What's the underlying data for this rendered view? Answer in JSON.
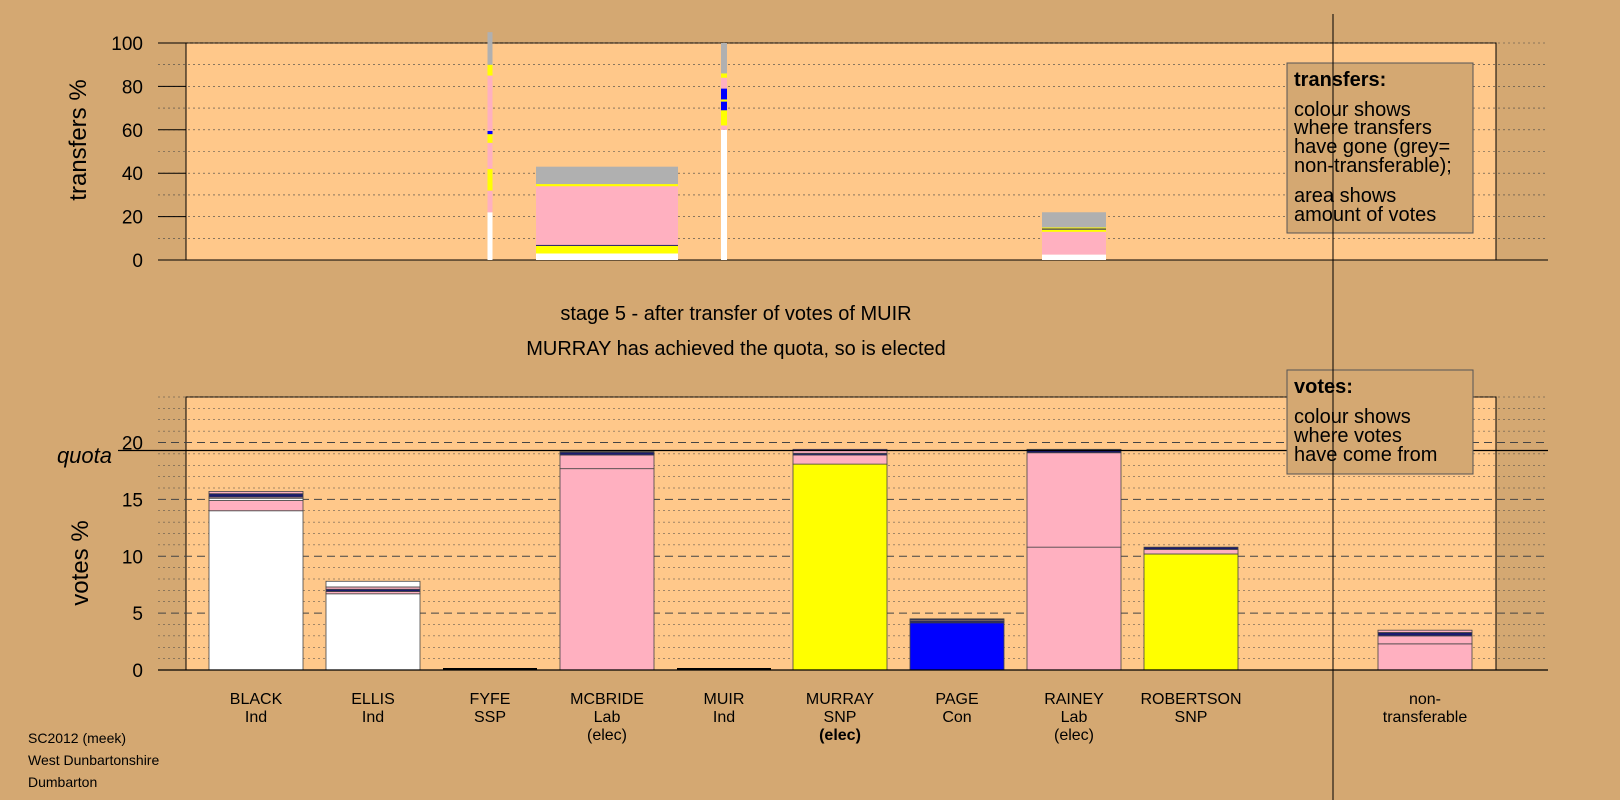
{
  "chart_data": [
    {
      "type": "bar",
      "panel": "transfers",
      "ylabel": "transfers %",
      "ylim": [
        0,
        100
      ],
      "yticks": [
        "0",
        "20",
        "40",
        "60",
        "80",
        "100"
      ],
      "note": "colour stacks show where transfers have gone; column width shows amount of votes",
      "columns": [
        {
          "candidate": "FYFE",
          "segments": [
            {
              "color": "#ffffff",
              "value": 22
            },
            {
              "color": "#ffb0c0",
              "value": 10
            },
            {
              "color": "#ffff00",
              "value": 10
            },
            {
              "color": "#ffb0c0",
              "value": 12
            },
            {
              "color": "#ffff00",
              "value": 4
            },
            {
              "color": "#0000ff",
              "value": 1.5
            },
            {
              "color": "#ffb0c0",
              "value": 25.5
            },
            {
              "color": "#ffff00",
              "value": 5
            },
            {
              "color": "#b0b0b0",
              "value": 15
            }
          ]
        },
        {
          "candidate": "MCBRIDE",
          "segments": [
            {
              "color": "#ffffff",
              "value": 3
            },
            {
              "color": "#ffff00",
              "value": 3.5
            },
            {
              "color": "#1a1a6e",
              "value": 0.5
            },
            {
              "color": "#ffb0c0",
              "value": 27
            },
            {
              "color": "#ffff00",
              "value": 1
            },
            {
              "color": "#b0b0b0",
              "value": 8
            }
          ]
        },
        {
          "candidate": "MUIR",
          "segments": [
            {
              "color": "#ffffff",
              "value": 60
            },
            {
              "color": "#ffb0c0",
              "value": 2
            },
            {
              "color": "#ffff00",
              "value": 7
            },
            {
              "color": "#0000ff",
              "value": 4
            },
            {
              "color": "#ffff00",
              "value": 1
            },
            {
              "color": "#0000ff",
              "value": 5
            },
            {
              "color": "#ffb0c0",
              "value": 5
            },
            {
              "color": "#ffff00",
              "value": 2
            },
            {
              "color": "#b0b0b0",
              "value": 14
            }
          ]
        },
        {
          "candidate": "RAINEY",
          "segments": [
            {
              "color": "#ffffff",
              "value": 2.5
            },
            {
              "color": "#ffb0c0",
              "value": 10.5
            },
            {
              "color": "#ffff00",
              "value": 1
            },
            {
              "color": "#1a1a6e",
              "value": 0.5
            },
            {
              "color": "#ffff00",
              "value": 0.5
            },
            {
              "color": "#b0b0b0",
              "value": 7
            }
          ]
        }
      ]
    },
    {
      "type": "bar",
      "panel": "votes",
      "ylabel": "votes %",
      "ylim": [
        0,
        24
      ],
      "yticks": [
        "0",
        "5",
        "10",
        "15",
        "20"
      ],
      "quota": 19.3,
      "note": "colour stacks show where votes have come from",
      "columns": [
        {
          "candidate": "BLACK",
          "segments": [
            {
              "color": "#ffffff",
              "value": 14.0
            },
            {
              "color": "#ffb0c0",
              "value": 0.9
            },
            {
              "color": "#ffffff",
              "value": 0.2
            },
            {
              "color": "#ffb0c0",
              "value": 0.1
            },
            {
              "color": "#1a1a6e",
              "value": 0.3
            },
            {
              "color": "#ffb0c0",
              "value": 0.2
            }
          ]
        },
        {
          "candidate": "ELLIS",
          "segments": [
            {
              "color": "#ffffff",
              "value": 6.7
            },
            {
              "color": "#ffb0c0",
              "value": 0.2
            },
            {
              "color": "#1a1a6e",
              "value": 0.2
            },
            {
              "color": "#ffb0c0",
              "value": 0.2
            },
            {
              "color": "#ffffff",
              "value": 0.5
            }
          ]
        },
        {
          "candidate": "FYFE",
          "segments": []
        },
        {
          "candidate": "MCBRIDE",
          "segments": [
            {
              "color": "#ffb0c0",
              "value": 17.7
            },
            {
              "color": "#ffb0c0",
              "value": 1.2
            },
            {
              "color": "#1a1a6e",
              "value": 0.25
            },
            {
              "color": "#7030a0",
              "value": 0.05
            }
          ]
        },
        {
          "candidate": "MUIR",
          "segments": []
        },
        {
          "candidate": "MURRAY",
          "segments": [
            {
              "color": "#ffff00",
              "value": 18.1
            },
            {
              "color": "#ffb0c0",
              "value": 0.8
            },
            {
              "color": "#1a1a6e",
              "value": 0.15
            },
            {
              "color": "#ffb0c0",
              "value": 0.25
            },
            {
              "color": "#7030a0",
              "value": 0.1
            }
          ]
        },
        {
          "candidate": "PAGE",
          "segments": [
            {
              "color": "#0000ff",
              "value": 4.15
            },
            {
              "color": "#1a1a6e",
              "value": 0.15
            },
            {
              "color": "#ffb0c0",
              "value": 0.1
            },
            {
              "color": "#1a1a6e",
              "value": 0.1
            }
          ]
        },
        {
          "candidate": "RAINEY",
          "segments": [
            {
              "color": "#ffb0c0",
              "value": 10.8
            },
            {
              "color": "#ffb0c0",
              "value": 8.3
            },
            {
              "color": "#1a1a6e",
              "value": 0.25
            },
            {
              "color": "#7030a0",
              "value": 0.05
            }
          ]
        },
        {
          "candidate": "ROBERTSON",
          "segments": [
            {
              "color": "#ffff00",
              "value": 10.2
            },
            {
              "color": "#ffb0c0",
              "value": 0.4
            },
            {
              "color": "#1a1a6e",
              "value": 0.2
            }
          ]
        },
        {
          "candidate": "non-transferable",
          "segments": [
            {
              "color": "#ffb0c0",
              "value": 2.3
            },
            {
              "color": "#ffb0c0",
              "value": 0.7
            },
            {
              "color": "#1a1a6e",
              "value": 0.3
            },
            {
              "color": "#ffb0c0",
              "value": 0.2
            }
          ]
        }
      ]
    }
  ],
  "stage_lines": [
    "stage 5 - after transfer of votes of MUIR",
    "MURRAY has achieved the quota, so is elected"
  ],
  "quota_label": "quota",
  "candidates": [
    {
      "name": "BLACK",
      "party": "Ind",
      "status": "",
      "status_bold": false
    },
    {
      "name": "ELLIS",
      "party": "Ind",
      "status": "",
      "status_bold": false
    },
    {
      "name": "FYFE",
      "party": "SSP",
      "status": "",
      "status_bold": false
    },
    {
      "name": "MCBRIDE",
      "party": "Lab",
      "status": "(elec)",
      "status_bold": false
    },
    {
      "name": "MUIR",
      "party": "Ind",
      "status": "",
      "status_bold": false
    },
    {
      "name": "MURRAY",
      "party": "SNP",
      "status": "(elec)",
      "status_bold": true
    },
    {
      "name": "PAGE",
      "party": "Con",
      "status": "",
      "status_bold": false
    },
    {
      "name": "RAINEY",
      "party": "Lab",
      "status": "(elec)",
      "status_bold": false
    },
    {
      "name": "ROBERTSON",
      "party": "SNP",
      "status": "",
      "status_bold": false
    },
    {
      "name": "non-",
      "party": "transferable",
      "status": "",
      "status_bold": false
    }
  ],
  "legend_transfers": {
    "title": "transfers:",
    "lines": [
      "colour shows",
      "where transfers",
      "have gone (grey=",
      "non-transferable);",
      "area shows",
      "amount of votes"
    ]
  },
  "legend_votes": {
    "title": "votes:",
    "lines": [
      "colour shows",
      "where votes",
      "have come from"
    ]
  },
  "footer": [
    "SC2012 (meek)",
    "West Dunbartonshire",
    "Dumbarton"
  ],
  "colors": {
    "page_bg": "#d4a872",
    "plot_bg": "#ffc88a",
    "white": "#ffffff",
    "pink": "#ffb0c0",
    "yellow": "#ffff00",
    "blue": "#0000ff",
    "navy": "#1a1a6e",
    "grey": "#b0b0b0"
  }
}
